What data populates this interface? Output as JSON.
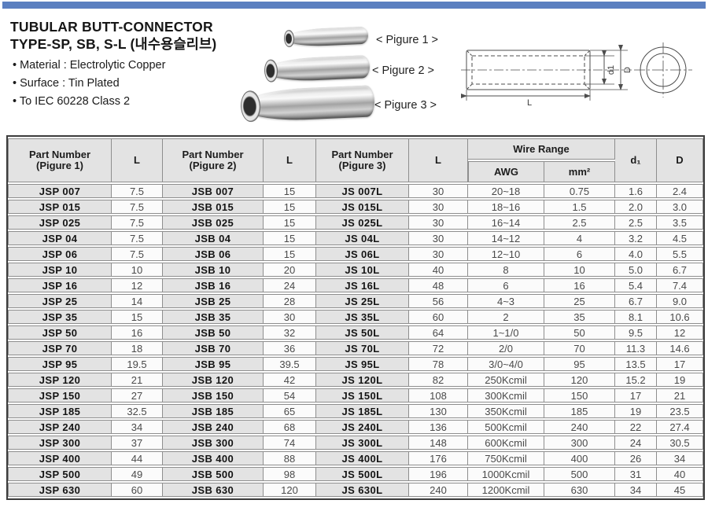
{
  "page": {
    "accent_color": "#5b7fc0"
  },
  "header": {
    "title_line1": "TUBULAR BUTT-CONNECTOR",
    "title_line2": "TYPE-SP, SB, S-L (내수용슬리브)",
    "bullets": [
      "• Material : Electrolytic Copper",
      "• Surface : Tin Plated",
      "• To IEC 60228 Class 2"
    ],
    "figures": [
      {
        "label": "< Pigure 1 >"
      },
      {
        "label": "< Pigure 2 >"
      },
      {
        "label": "< Pigure 3 >"
      }
    ],
    "diagram": {
      "dim_inner": "d1",
      "dim_outer": "D",
      "dim_length": "L"
    }
  },
  "table": {
    "header": {
      "part1_title": "Part Number",
      "part1_sub": "(Pigure 1)",
      "part2_title": "Part Number",
      "part2_sub": "(Pigure 2)",
      "part3_title": "Part Number",
      "part3_sub": "(Pigure 3)",
      "l": "L",
      "wire_range": "Wire Range",
      "awg": "AWG",
      "mm2": "mm²",
      "d1": "d₁",
      "d": "D"
    },
    "rows": [
      [
        "JSP 007",
        "7.5",
        "JSB 007",
        "15",
        "JS 007L",
        "30",
        "20~18",
        "0.75",
        "1.6",
        "2.4"
      ],
      [
        "JSP 015",
        "7.5",
        "JSB 015",
        "15",
        "JS 015L",
        "30",
        "18~16",
        "1.5",
        "2.0",
        "3.0"
      ],
      [
        "JSP 025",
        "7.5",
        "JSB 025",
        "15",
        "JS 025L",
        "30",
        "16~14",
        "2.5",
        "2.5",
        "3.5"
      ],
      [
        "JSP 04",
        "7.5",
        "JSB 04",
        "15",
        "JS 04L",
        "30",
        "14~12",
        "4",
        "3.2",
        "4.5"
      ],
      [
        "JSP 06",
        "7.5",
        "JSB 06",
        "15",
        "JS 06L",
        "30",
        "12~10",
        "6",
        "4.0",
        "5.5"
      ],
      [
        "JSP 10",
        "10",
        "JSB 10",
        "20",
        "JS 10L",
        "40",
        "8",
        "10",
        "5.0",
        "6.7"
      ],
      [
        "JSP 16",
        "12",
        "JSB 16",
        "24",
        "JS 16L",
        "48",
        "6",
        "16",
        "5.4",
        "7.4"
      ],
      [
        "JSP 25",
        "14",
        "JSB 25",
        "28",
        "JS 25L",
        "56",
        "4~3",
        "25",
        "6.7",
        "9.0"
      ],
      [
        "JSP 35",
        "15",
        "JSB 35",
        "30",
        "JS 35L",
        "60",
        "2",
        "35",
        "8.1",
        "10.6"
      ],
      [
        "JSP 50",
        "16",
        "JSB 50",
        "32",
        "JS 50L",
        "64",
        "1~1/0",
        "50",
        "9.5",
        "12"
      ],
      [
        "JSP 70",
        "18",
        "JSB 70",
        "36",
        "JS 70L",
        "72",
        "2/0",
        "70",
        "11.3",
        "14.6"
      ],
      [
        "JSP 95",
        "19.5",
        "JSB 95",
        "39.5",
        "JS 95L",
        "78",
        "3/0~4/0",
        "95",
        "13.5",
        "17"
      ],
      [
        "JSP 120",
        "21",
        "JSB 120",
        "42",
        "JS 120L",
        "82",
        "250Kcmil",
        "120",
        "15.2",
        "19"
      ],
      [
        "JSP 150",
        "27",
        "JSB 150",
        "54",
        "JS 150L",
        "108",
        "300Kcmil",
        "150",
        "17",
        "21"
      ],
      [
        "JSP 185",
        "32.5",
        "JSB 185",
        "65",
        "JS 185L",
        "130",
        "350Kcmil",
        "185",
        "19",
        "23.5"
      ],
      [
        "JSP 240",
        "34",
        "JSB 240",
        "68",
        "JS 240L",
        "136",
        "500Kcmil",
        "240",
        "22",
        "27.4"
      ],
      [
        "JSP 300",
        "37",
        "JSB 300",
        "74",
        "JS 300L",
        "148",
        "600Kcmil",
        "300",
        "24",
        "30.5"
      ],
      [
        "JSP 400",
        "44",
        "JSB 400",
        "88",
        "JS 400L",
        "176",
        "750Kcmil",
        "400",
        "26",
        "34"
      ],
      [
        "JSP 500",
        "49",
        "JSB 500",
        "98",
        "JS 500L",
        "196",
        "1000Kcmil",
        "500",
        "31",
        "40"
      ],
      [
        "JSP 630",
        "60",
        "JSB 630",
        "120",
        "JS 630L",
        "240",
        "1200Kcmil",
        "630",
        "34",
        "45"
      ]
    ]
  }
}
